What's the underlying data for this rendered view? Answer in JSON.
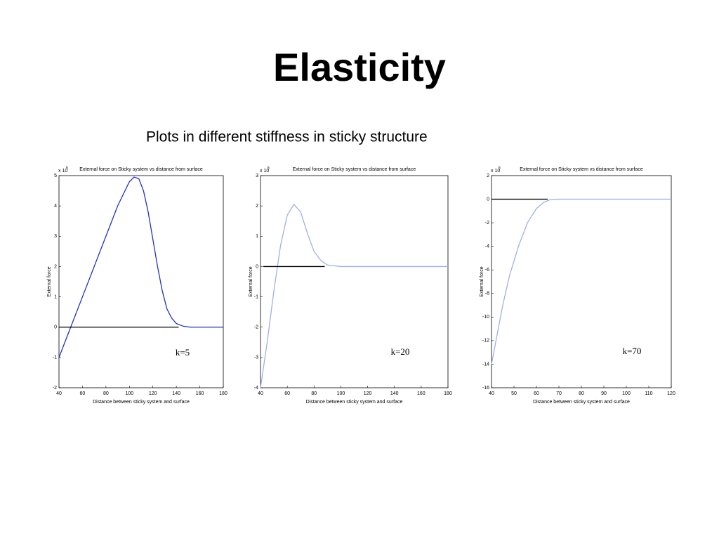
{
  "title": "Elasticity",
  "subtitle": "Plots in different stiffness in sticky structure",
  "chart_data": [
    {
      "type": "line",
      "title": "External force on Sticky system vs distance from surface",
      "xlabel": "Distance between sticky system and surface",
      "ylabel": "External force",
      "multiplier": "x 10",
      "multiplier_exponent": "5",
      "annotation": "k=5",
      "xlim": [
        40,
        180
      ],
      "xticks": [
        40,
        60,
        80,
        100,
        120,
        140,
        160,
        180
      ],
      "ylim": [
        -2,
        5
      ],
      "yticks": [
        -2,
        -1,
        0,
        1,
        2,
        3,
        4,
        5
      ],
      "series": [
        {
          "color": "#1f33c4",
          "x": [
            40,
            50,
            60,
            70,
            80,
            90,
            100,
            104,
            108,
            112,
            116,
            120,
            124,
            128,
            132,
            136,
            140,
            146,
            152,
            160,
            170,
            180
          ],
          "values": [
            -1,
            0.0,
            1.0,
            2.0,
            3.0,
            4.0,
            4.8,
            4.95,
            4.9,
            4.5,
            3.8,
            2.9,
            2.0,
            1.2,
            0.6,
            0.3,
            0.12,
            0.03,
            0,
            0,
            0,
            0
          ]
        },
        {
          "color": "#000000",
          "x": [
            40,
            142
          ],
          "values": [
            0,
            0
          ]
        }
      ]
    },
    {
      "type": "line",
      "title": "External force on Sticky system vs distance from surface",
      "xlabel": "Distance between sticky system and surface",
      "ylabel": "External force",
      "multiplier": "x 10",
      "multiplier_exponent": "5",
      "annotation": "k=20",
      "xlim": [
        40,
        180
      ],
      "xticks": [
        40,
        60,
        80,
        100,
        120,
        140,
        160,
        180
      ],
      "ylim": [
        -4,
        3
      ],
      "yticks": [
        -4,
        -3,
        -2,
        -1,
        0,
        1,
        2,
        3
      ],
      "series": [
        {
          "color": "#9fb0ea",
          "x": [
            40,
            45,
            50,
            55,
            60,
            65,
            70,
            75,
            80,
            85,
            90,
            100,
            180
          ],
          "values": [
            -4,
            -2.5,
            -0.8,
            0.7,
            1.7,
            2.05,
            1.8,
            1.1,
            0.5,
            0.2,
            0.05,
            0,
            0
          ]
        },
        {
          "color": "#000000",
          "x": [
            42,
            88
          ],
          "values": [
            0,
            0
          ]
        }
      ]
    },
    {
      "type": "line",
      "title": "External force on Sticky system vs distance from surface",
      "xlabel": "Distance between sticky system and surface",
      "ylabel": "External force",
      "multiplier": "x 10",
      "multiplier_exponent": "5",
      "annotation": "k=70",
      "xlim": [
        40,
        120
      ],
      "xticks": [
        40,
        50,
        60,
        70,
        80,
        90,
        100,
        110,
        120
      ],
      "ylim": [
        -16,
        2
      ],
      "yticks": [
        -16,
        -14,
        -12,
        -10,
        -8,
        -6,
        -4,
        -2,
        0,
        2
      ],
      "series": [
        {
          "color": "#9fb0ea",
          "x": [
            40,
            42,
            45,
            48,
            52,
            56,
            60,
            63,
            66,
            70,
            120
          ],
          "values": [
            -14,
            -12,
            -9,
            -6.5,
            -4,
            -2,
            -0.8,
            -0.3,
            -0.05,
            0,
            0
          ]
        },
        {
          "color": "#000000",
          "x": [
            40,
            65
          ],
          "values": [
            0,
            0
          ]
        }
      ]
    }
  ]
}
